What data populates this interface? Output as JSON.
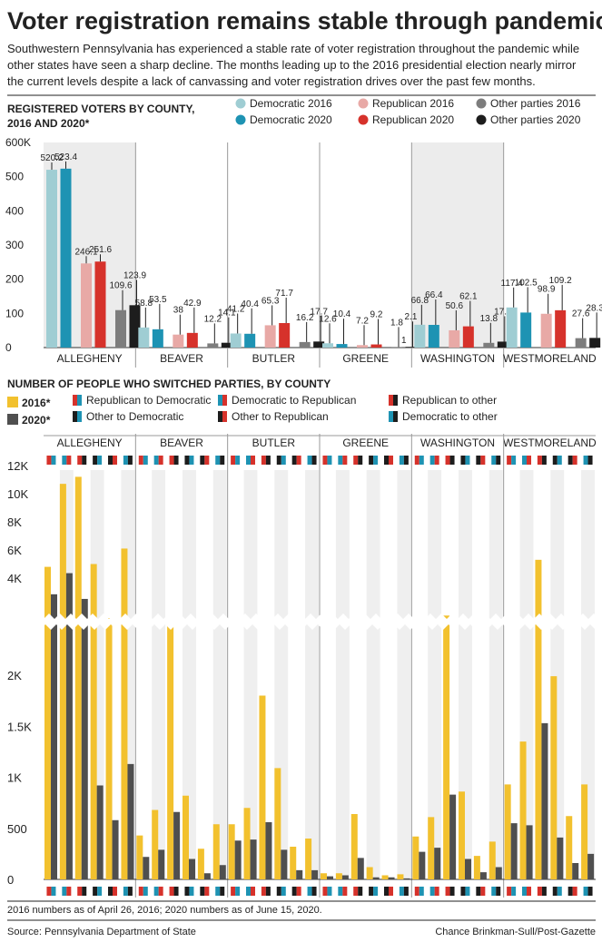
{
  "headline": "Voter registration remains stable through pandemic",
  "dek_lines": [
    "Southwestern Pennsylvania has experienced a stable rate of voter registration throughout the pandemic while",
    "other states have seen a sharp decline. The months leading up to the 2016 presidential election nearly mirror",
    "the current levels despite a lack of canvassing and voter registration drives over the past few months."
  ],
  "colors": {
    "dem2016": "#9fcdd3",
    "dem2020": "#1e93b3",
    "rep2016": "#e8a9a6",
    "rep2020": "#d6322b",
    "oth2016": "#7d7d7d",
    "oth2020": "#1d1d1d",
    "yellow": "#f2c12e",
    "darkgray": "#4f4f4f",
    "band": "#ececec",
    "divider": "#9a9a9a"
  },
  "chart_data": [
    {
      "type": "bar",
      "title_lines": [
        "REGISTERED VOTERS BY COUNTY,",
        "2016 AND 2020*"
      ],
      "categories": [
        "ALLEGHENY",
        "BEAVER",
        "BUTLER",
        "GREENE",
        "WASHINGTON",
        "WESTMORELAND"
      ],
      "y_ticks": [
        "0",
        "100",
        "200",
        "300",
        "400",
        "500",
        "600K"
      ],
      "ylim": [
        0,
        600
      ],
      "series": [
        {
          "name": "Democratic 2016",
          "color_key": "dem2016",
          "values": [
            520.2,
            58.8,
            41.2,
            12.6,
            66.8,
            117.4
          ],
          "labels": [
            "520.2",
            "58.8",
            "41.2",
            "12.6",
            "66.8",
            "117.4"
          ]
        },
        {
          "name": "Democratic 2020",
          "color_key": "dem2020",
          "values": [
            523.4,
            53.5,
            40.4,
            10.4,
            66.4,
            102.5
          ],
          "labels": [
            "523.4",
            "53.5",
            "40.4",
            "10.4",
            "66.4",
            "102.5"
          ]
        },
        {
          "name": "Republican 2016",
          "color_key": "rep2016",
          "values": [
            246.1,
            38,
            65.3,
            7.2,
            50.6,
            98.9
          ],
          "labels": [
            "246.1",
            "38",
            "65.3",
            "7.2",
            "50.6",
            "98.9"
          ]
        },
        {
          "name": "Republican 2020",
          "color_key": "rep2020",
          "values": [
            251.6,
            42.9,
            71.7,
            9.2,
            62.1,
            109.2
          ],
          "labels": [
            "251.6",
            "42.9",
            "71.7",
            "9.2",
            "62.1",
            "109.2"
          ]
        },
        {
          "name": "Other parties 2016",
          "color_key": "oth2016",
          "values": [
            109.6,
            12.2,
            16.2,
            1.8,
            13.8,
            27.6
          ],
          "labels": [
            "109.6",
            "12.2",
            "16.2",
            "1.8",
            "13.8",
            "27.6"
          ]
        },
        {
          "name": "Other parties 2020",
          "color_key": "oth2020",
          "values": [
            123.9,
            14.1,
            17.7,
            2.1,
            17.4,
            28.3
          ],
          "labels": [
            "123.9",
            "14.1",
            "17.7",
            "2.1",
            "17.4",
            "28.3"
          ]
        }
      ],
      "extra_labels": [
        "1"
      ]
    },
    {
      "type": "bar",
      "title": "NUMBER OF PEOPLE WHO SWITCHED PARTIES, BY COUNTY",
      "categories": [
        "ALLEGHENY",
        "BEAVER",
        "BUTLER",
        "GREENE",
        "WASHINGTON",
        "WESTMORELAND"
      ],
      "year_legend": [
        "2016*",
        "2020*"
      ],
      "switch_types": [
        {
          "name": "Republican to Democratic",
          "from": "rep2020",
          "to": "dem2020"
        },
        {
          "name": "Democratic to Republican",
          "from": "dem2020",
          "to": "rep2020"
        },
        {
          "name": "Republican to other",
          "from": "rep2020",
          "to": "oth2020"
        },
        {
          "name": "Other to Democratic",
          "from": "oth2020",
          "to": "dem2020"
        },
        {
          "name": "Other to Republican",
          "from": "oth2020",
          "to": "rep2020"
        },
        {
          "name": "Democratic to other",
          "from": "dem2020",
          "to": "oth2020"
        }
      ],
      "y_ticks_upper": [
        "4K",
        "6K",
        "8K",
        "10K",
        "12K"
      ],
      "y_ticks_lower": [
        "0",
        "500",
        "1K",
        "1.5K",
        "2K"
      ],
      "series": [
        {
          "name": "2016*",
          "color_key": "yellow",
          "values": [
            [
              4800,
              10700,
              11200,
              5000,
              2270,
              6100
            ],
            [
              430,
              680,
              2180,
              820,
              300,
              540
            ],
            [
              540,
              700,
              1800,
              1090,
              320,
              400
            ],
            [
              60,
              60,
              640,
              120,
              40,
              50
            ],
            [
              420,
              610,
              2380,
              860,
              230,
              370
            ],
            [
              930,
              1350,
              5300,
              1990,
              620,
              930
            ]
          ]
        },
        {
          "name": "2020*",
          "color_key": "darkgray",
          "values": [
            [
              3300,
              4350,
              3100,
              920,
              580,
              1130
            ],
            [
              220,
              290,
              660,
              200,
              60,
              140
            ],
            [
              380,
              390,
              560,
              290,
              90,
              90
            ],
            [
              30,
              40,
              210,
              20,
              20,
              10
            ],
            [
              270,
              310,
              830,
              200,
              70,
              120
            ],
            [
              550,
              530,
              1530,
              410,
              160,
              250
            ]
          ]
        }
      ]
    }
  ],
  "footnote": "2016 numbers as of April 26, 2016; 2020 numbers as of June 15, 2020.",
  "source": "Source: Pennsylvania Department of State",
  "credit": "Chance Brinkman-Sull/Post-Gazette"
}
